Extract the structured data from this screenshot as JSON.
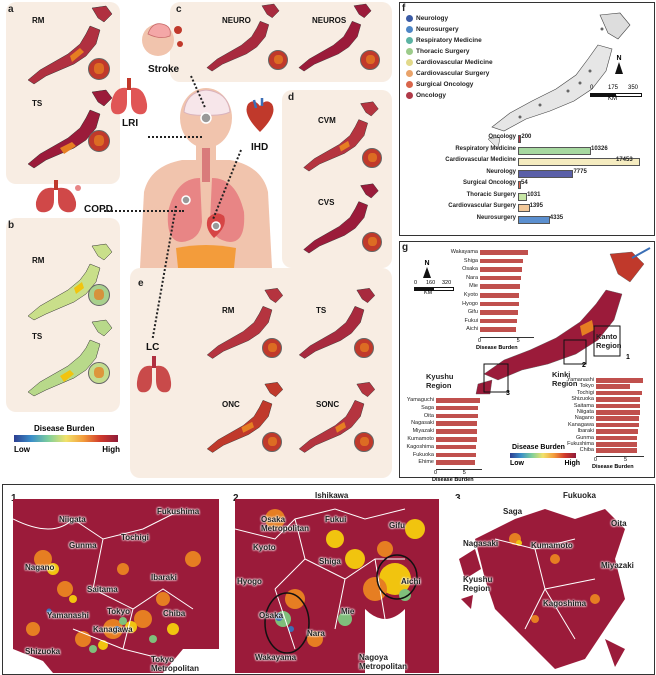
{
  "panels": {
    "a": {
      "letter": "a",
      "maps": [
        "RM",
        "TS"
      ]
    },
    "b": {
      "letter": "b",
      "maps": [
        "RM",
        "TS"
      ]
    },
    "c": {
      "letter": "c",
      "maps": [
        "NEURO",
        "NEUROS"
      ]
    },
    "d": {
      "letter": "d",
      "maps": [
        "CVM",
        "CVS"
      ]
    },
    "e": {
      "letter": "e",
      "maps": [
        "RM",
        "TS",
        "ONC",
        "SONC"
      ]
    }
  },
  "diseases": {
    "stroke": "Stroke",
    "lri": "LRI",
    "ihd": "IHD",
    "copd": "COPD",
    "lc": "LC"
  },
  "legend_left": {
    "title": "Disease Burden",
    "low": "Low",
    "high": "High"
  },
  "panel_f": {
    "letter": "f",
    "legend": [
      {
        "label": "Neurology",
        "color": "#3b5ba5"
      },
      {
        "label": "Neurosurgery",
        "color": "#4d86c6"
      },
      {
        "label": "Respiratory Medicine",
        "color": "#5bb3a3"
      },
      {
        "label": "Thoracic Surgery",
        "color": "#9ccb8a"
      },
      {
        "label": "Cardiovascular Medicine",
        "color": "#e2d98a"
      },
      {
        "label": "Cardiovascular Surgery",
        "color": "#e9a36a"
      },
      {
        "label": "Surgical Oncology",
        "color": "#d9654b"
      },
      {
        "label": "Oncology",
        "color": "#b03a48"
      }
    ],
    "north": "N",
    "scale": {
      "ticks": [
        "0",
        "175",
        "350"
      ],
      "unit": "KM"
    },
    "bars": [
      {
        "label": "Oncology",
        "value": "200",
        "num": 200,
        "color": "#b03a48"
      },
      {
        "label": "Respiratory Medicine",
        "value": "10326",
        "num": 10326,
        "color": "#a6d8a0"
      },
      {
        "label": "Cardiovascular Medicine",
        "value": "17453",
        "num": 17453,
        "color": "#f5ecc0"
      },
      {
        "label": "Neurology",
        "value": "7775",
        "num": 7775,
        "color": "#5a5fa8"
      },
      {
        "label": "Surgical Oncology",
        "value": "54",
        "num": 54,
        "color": "#d9654b"
      },
      {
        "label": "Thoracic Surgery",
        "value": "1031",
        "num": 1031,
        "color": "#c7e6a5"
      },
      {
        "label": "Cardiovascular Surgery",
        "value": "1395",
        "num": 1395,
        "color": "#f3c99a"
      },
      {
        "label": "Neurosurgery",
        "value": "4335",
        "num": 4335,
        "color": "#5b8fcf"
      }
    ]
  },
  "panel_g": {
    "letter": "g",
    "north": "N",
    "scale": {
      "ticks": [
        "0",
        "160",
        "320"
      ],
      "unit": "KM"
    },
    "axis_title": "Disease Burden",
    "legend": {
      "title": "Disease Burden",
      "low": "Low",
      "high": "High"
    },
    "kinki": {
      "name": "Kinki\nRegion",
      "ticks": [
        "0",
        "5"
      ],
      "items": [
        {
          "name": "Wakayama",
          "v": 6.2
        },
        {
          "name": "Shiga",
          "v": 5.6
        },
        {
          "name": "Osaka",
          "v": 5.4
        },
        {
          "name": "Nara",
          "v": 5.3
        },
        {
          "name": "Mie",
          "v": 5.2
        },
        {
          "name": "Kyoto",
          "v": 5.1
        },
        {
          "name": "Hyogo",
          "v": 5.0
        },
        {
          "name": "Gifu",
          "v": 4.9
        },
        {
          "name": "Fukui",
          "v": 4.8
        },
        {
          "name": "Aichi",
          "v": 4.7
        }
      ]
    },
    "kyushu": {
      "name": "Kyushu\nRegion",
      "ticks": [
        "0",
        "5"
      ],
      "items": [
        {
          "name": "Yamaguchi",
          "v": 7.6
        },
        {
          "name": "Saga",
          "v": 7.3
        },
        {
          "name": "Oita",
          "v": 7.3
        },
        {
          "name": "Nagasaki",
          "v": 7.2
        },
        {
          "name": "Miyazaki",
          "v": 7.1
        },
        {
          "name": "Kumamoto",
          "v": 7.1
        },
        {
          "name": "Kagoshima",
          "v": 7.0
        },
        {
          "name": "Fukuoka",
          "v": 6.9
        },
        {
          "name": "Ehime",
          "v": 6.8
        }
      ]
    },
    "kanto": {
      "name": "Kanto\nRegion",
      "ticks": [
        "0",
        "5"
      ],
      "items": [
        {
          "name": "Yamanashi",
          "v": 7.8
        },
        {
          "name": "Tokyo",
          "v": 5.6
        },
        {
          "name": "Tochigi",
          "v": 7.6
        },
        {
          "name": "Shizuoka",
          "v": 7.4
        },
        {
          "name": "Saitama",
          "v": 7.3
        },
        {
          "name": "Niigata",
          "v": 7.3
        },
        {
          "name": "Nagano",
          "v": 7.2
        },
        {
          "name": "Kanagawa",
          "v": 7.1
        },
        {
          "name": "Ibaraki",
          "v": 7.0
        },
        {
          "name": "Gunma",
          "v": 6.9
        },
        {
          "name": "Fukushima",
          "v": 6.9
        },
        {
          "name": "Chiba",
          "v": 6.8
        }
      ]
    },
    "boxes": [
      "1",
      "2",
      "3"
    ]
  },
  "bottom": {
    "map1": {
      "num": "1",
      "labels": [
        "Niigata",
        "Fukushima",
        "Gunma",
        "Tochigi",
        "Nagano",
        "Ibaraki",
        "Saitama",
        "Tokyo",
        "Chiba",
        "Yamanashi",
        "Kanagawa",
        "Shizuoka",
        "Tokyo\nMetropolitan"
      ]
    },
    "map2": {
      "num": "2",
      "labels": [
        "Ishikawa",
        "Fukui",
        "Gifu",
        "Kyoto",
        "Shiga",
        "Hyogo",
        "Aichi",
        "Osaka",
        "Mie",
        "Nara",
        "Wakayama"
      ],
      "osaka_metro": "Osaka\nMetropolitan",
      "nagoya_metro": "Nagoya\nMetropolitan"
    },
    "map3": {
      "num": "3",
      "labels": [
        "Fukuoka",
        "Saga",
        "Oita",
        "Nagasaki",
        "Kumamoto",
        "Miyazaki",
        "Kagoshima"
      ],
      "region": "Kyushu\nRegion"
    }
  },
  "colors": {
    "dark": "#9b1b3a",
    "red": "#c0392b",
    "orange": "#e67e22",
    "yellow": "#f1c40f",
    "green": "#7fbf7b",
    "blue": "#3b6fb6",
    "panel_bg": "#f8ede3"
  }
}
